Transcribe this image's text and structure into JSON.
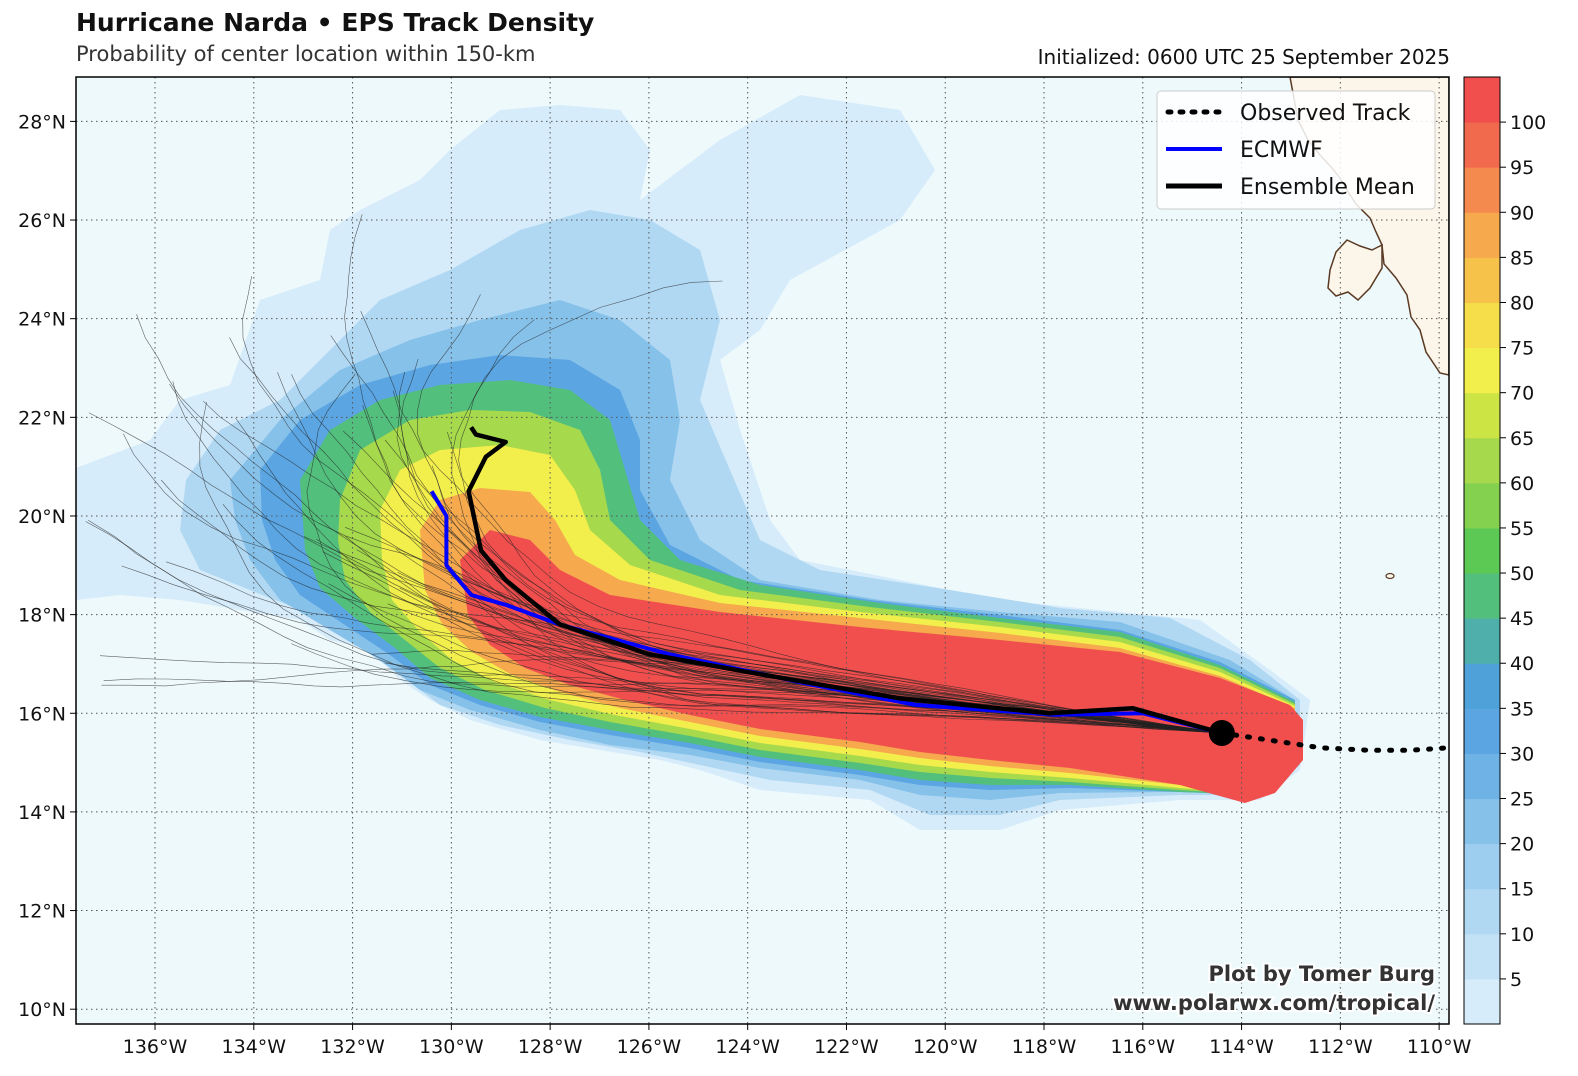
{
  "header": {
    "title": "Hurricane Narda • EPS Track Density",
    "subtitle": "Probability of center location within 150-km",
    "initialized": "Initialized: 0600 UTC 25 September 2025"
  },
  "map": {
    "lon_range": [
      -137.6,
      -109.8
    ],
    "lat_range": [
      9.7,
      28.9
    ],
    "lon_ticks": [
      {
        "value": -136,
        "label": "136°W"
      },
      {
        "value": -134,
        "label": "134°W"
      },
      {
        "value": -132,
        "label": "132°W"
      },
      {
        "value": -130,
        "label": "130°W"
      },
      {
        "value": -128,
        "label": "128°W"
      },
      {
        "value": -126,
        "label": "126°W"
      },
      {
        "value": -124,
        "label": "124°W"
      },
      {
        "value": -122,
        "label": "122°W"
      },
      {
        "value": -120,
        "label": "120°W"
      },
      {
        "value": -118,
        "label": "118°W"
      },
      {
        "value": -116,
        "label": "116°W"
      },
      {
        "value": -114,
        "label": "114°W"
      },
      {
        "value": -112,
        "label": "112°W"
      },
      {
        "value": -110,
        "label": "110°W"
      }
    ],
    "lat_ticks": [
      {
        "value": 10,
        "label": "10°N"
      },
      {
        "value": 12,
        "label": "12°N"
      },
      {
        "value": 14,
        "label": "14°N"
      },
      {
        "value": 16,
        "label": "16°N"
      },
      {
        "value": 18,
        "label": "18°N"
      },
      {
        "value": 20,
        "label": "20°N"
      },
      {
        "value": 22,
        "label": "22°N"
      },
      {
        "value": 24,
        "label": "24°N"
      },
      {
        "value": 26,
        "label": "26°N"
      },
      {
        "value": 28,
        "label": "28°N"
      }
    ],
    "gridlines": "dotted",
    "ocean_color": "#eef9fc",
    "land_color": "#fbf5ea"
  },
  "legend": {
    "placement": "top-right",
    "entries": [
      {
        "label": "Observed Track",
        "style": "dotted",
        "color": "#000000"
      },
      {
        "label": "ECMWF",
        "style": "solid",
        "color": "#0000ff"
      },
      {
        "label": "Ensemble Mean",
        "style": "solid",
        "color": "#000000"
      }
    ]
  },
  "colorbar": {
    "labels": [
      "5",
      "10",
      "15",
      "20",
      "25",
      "30",
      "35",
      "40",
      "45",
      "50",
      "55",
      "60",
      "65",
      "70",
      "75",
      "80",
      "85",
      "90",
      "95",
      "100"
    ],
    "colors": [
      "#d6ecfa",
      "#c4e2f6",
      "#b1d8f3",
      "#9dcdef",
      "#86c1ea",
      "#6fb2e6",
      "#5aa5e2",
      "#4ea1d9",
      "#4fb0ab",
      "#53bf7d",
      "#5cc955",
      "#83d14f",
      "#a6d94b",
      "#cde445",
      "#f2ee4c",
      "#f6dd4a",
      "#f6c24a",
      "#f6a94d",
      "#f58a4e",
      "#f26a4e",
      "#f04f4e"
    ]
  },
  "tracks": {
    "current_position": {
      "lon": -114.4,
      "lat": 15.6
    },
    "observed_track": [
      {
        "lon": -114.4,
        "lat": 15.6
      },
      {
        "lon": -113.4,
        "lat": 15.45
      },
      {
        "lon": -112.4,
        "lat": 15.3
      },
      {
        "lon": -111.4,
        "lat": 15.25
      },
      {
        "lon": -110.6,
        "lat": 15.25
      },
      {
        "lon": -109.8,
        "lat": 15.3
      }
    ],
    "ecmwf_track": [
      {
        "lon": -114.4,
        "lat": 15.6
      },
      {
        "lon": -116.0,
        "lat": 16.0
      },
      {
        "lon": -117.8,
        "lat": 15.97
      },
      {
        "lon": -120.6,
        "lat": 16.17
      },
      {
        "lon": -122.8,
        "lat": 16.6
      },
      {
        "lon": -125.6,
        "lat": 17.2
      },
      {
        "lon": -127.8,
        "lat": 17.8
      },
      {
        "lon": -128.9,
        "lat": 18.2
      },
      {
        "lon": -129.6,
        "lat": 18.4
      },
      {
        "lon": -130.1,
        "lat": 19.0
      },
      {
        "lon": -130.1,
        "lat": 20.0
      },
      {
        "lon": -130.4,
        "lat": 20.5
      }
    ],
    "ensemble_mean_track": [
      {
        "lon": -114.4,
        "lat": 15.6
      },
      {
        "lon": -116.2,
        "lat": 16.1
      },
      {
        "lon": -117.9,
        "lat": 16.0
      },
      {
        "lon": -120.9,
        "lat": 16.3
      },
      {
        "lon": -123.8,
        "lat": 16.8
      },
      {
        "lon": -126.0,
        "lat": 17.2
      },
      {
        "lon": -127.8,
        "lat": 17.8
      },
      {
        "lon": -128.9,
        "lat": 18.7
      },
      {
        "lon": -129.4,
        "lat": 19.3
      },
      {
        "lon": -129.65,
        "lat": 20.5
      },
      {
        "lon": -129.3,
        "lat": 21.2
      },
      {
        "lon": -128.9,
        "lat": 21.5
      },
      {
        "lon": -129.5,
        "lat": 21.65
      },
      {
        "lon": -129.6,
        "lat": 21.8
      }
    ]
  },
  "credit": {
    "line1": "Plot by Tomer Burg",
    "line2": "www.polarwx.com/tropical/"
  }
}
